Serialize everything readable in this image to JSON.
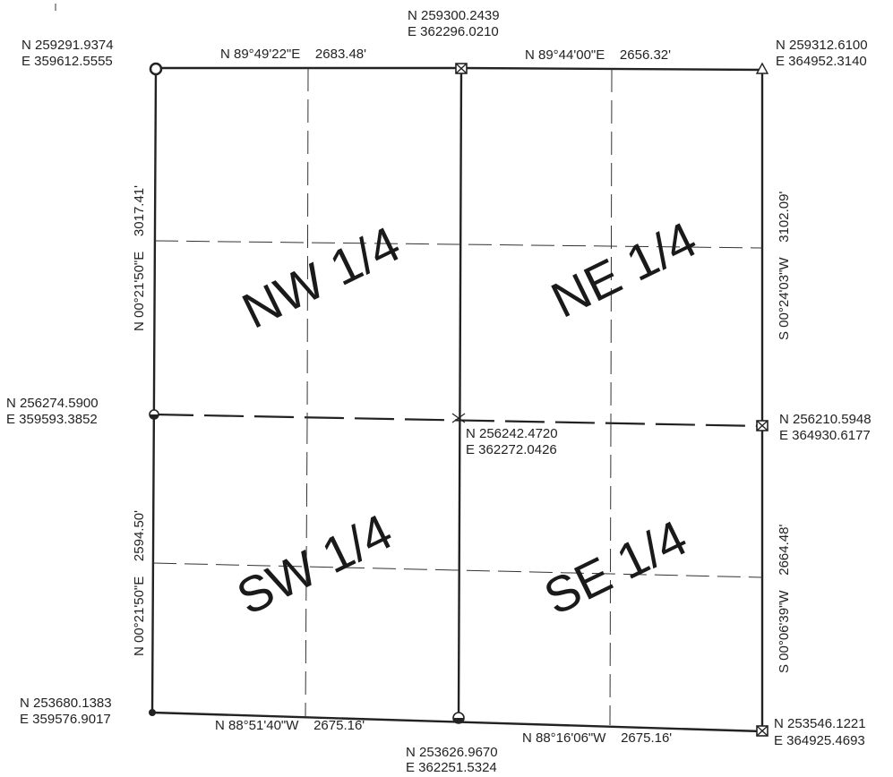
{
  "corners": {
    "nw": {
      "n": "N 259291.9374",
      "e": "E 359612.5555"
    },
    "n_quarter": {
      "n": "N 259300.2439",
      "e": "E 362296.0210"
    },
    "ne": {
      "n": "N 259312.6100",
      "e": "E 364952.3140"
    },
    "w_quarter": {
      "n": "N 256274.5900",
      "e": "E 359593.3852"
    },
    "center": {
      "n": "N 256242.4720",
      "e": "E 362272.0426"
    },
    "e_quarter": {
      "n": "N 256210.5948",
      "e": "E 364930.6177"
    },
    "sw": {
      "n": "N 253680.1383",
      "e": "E 359576.9017"
    },
    "s_quarter": {
      "n": "N 253626.9670",
      "e": "E 362251.5324"
    },
    "se": {
      "n": "N 253546.1221",
      "e": "E 364925.4693"
    }
  },
  "bearings": {
    "north_west": "N 89°49'22\"E    2683.48'",
    "north_east": "N 89°44'00\"E    2656.32'",
    "south_west": "N 88°51'40\"W    2675.16'",
    "south_east": "N 88°16'06\"W    2675.16'",
    "west_north": "N 00°21'50\"E    3017.41'",
    "west_south": "N 00°21'50\"E    2594.50'",
    "east_north": "S 00°24'03\"W    3102.09'",
    "east_south": "S 00°06'39\"W    2664.48'"
  },
  "quarters": {
    "nw": "NW 1/4",
    "ne": "NE 1/4",
    "sw": "SW 1/4",
    "se": "SE 1/4"
  }
}
